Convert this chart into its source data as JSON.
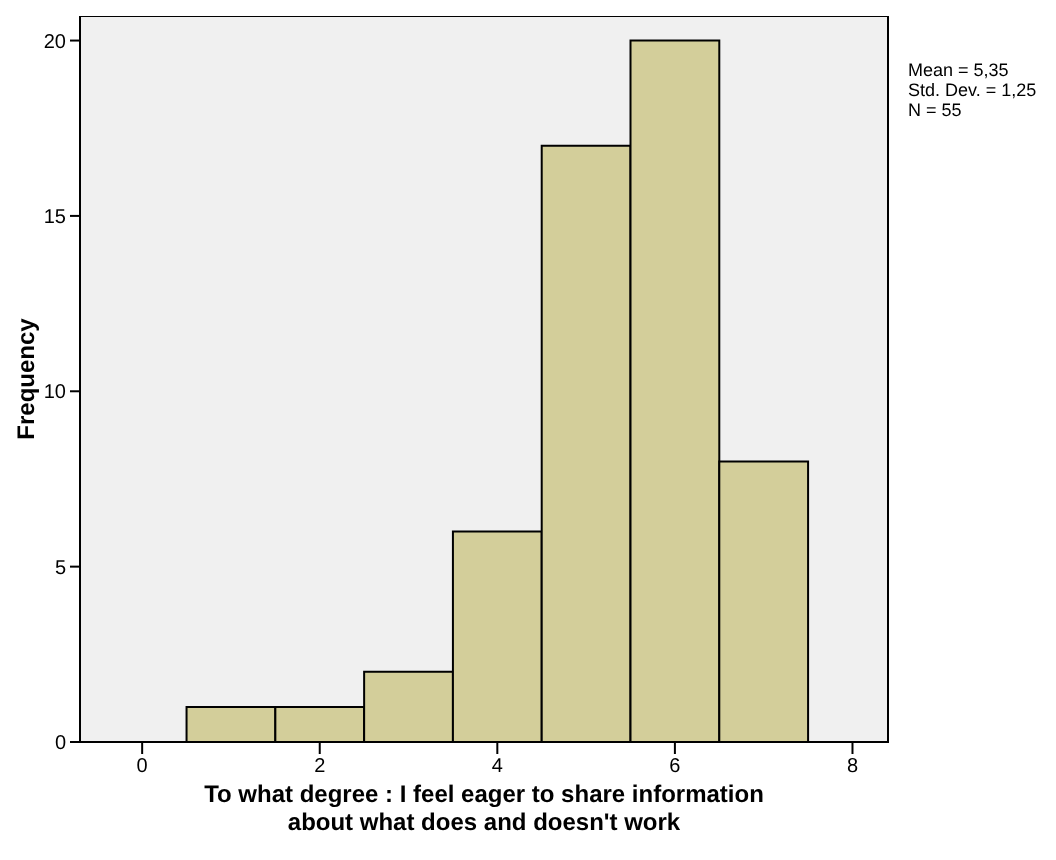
{
  "chart_data": {
    "type": "histogram",
    "xlabel": "To what degree : I feel eager to share information about what does and doesn't work",
    "ylabel": "Frequency",
    "bins": [
      0.5,
      1.5,
      2.5,
      3.5,
      4.5,
      5.5,
      6.5,
      7.5
    ],
    "values": [
      1,
      1,
      2,
      6,
      17,
      20,
      8
    ],
    "color": "#d3ce9a",
    "xlim": [
      -0.7,
      8.4
    ],
    "ylim": [
      0,
      20.7
    ],
    "xticks": [
      0,
      2,
      4,
      6,
      8
    ],
    "yticks": [
      0,
      5,
      10,
      15,
      20
    ],
    "grid": false,
    "annotations": [
      "Mean = 5,35",
      "Std. Dev. = 1,25",
      "N = 55"
    ]
  }
}
